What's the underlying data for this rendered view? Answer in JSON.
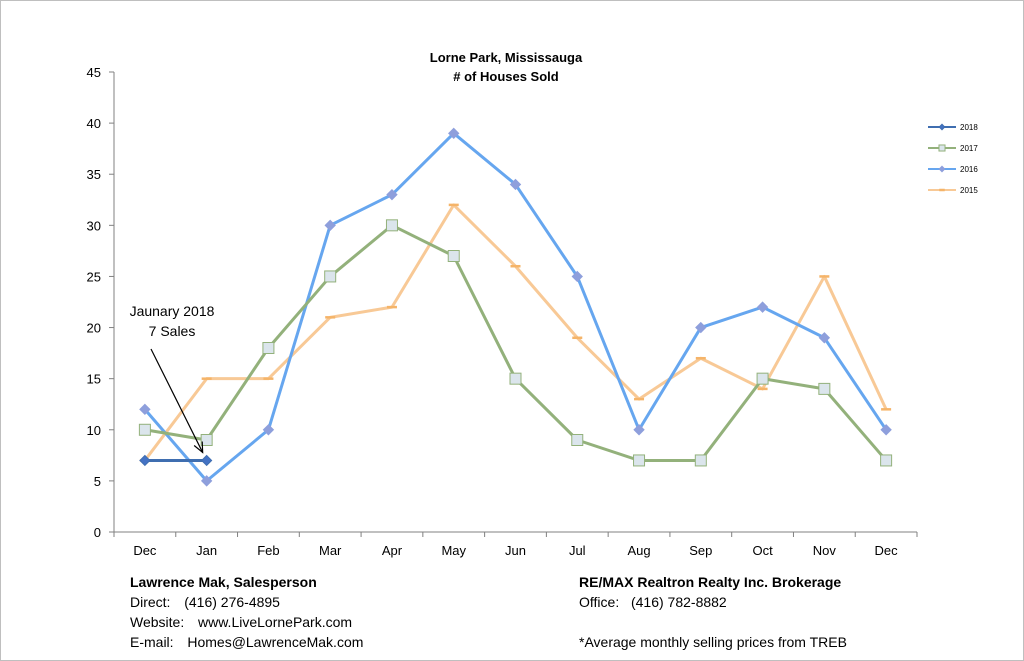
{
  "chart_data": {
    "type": "line",
    "title": "Lorne Park, Mississauga",
    "subtitle": "# of Houses Sold",
    "categories": [
      "Dec",
      "Jan",
      "Feb",
      "Mar",
      "Apr",
      "May",
      "Jun",
      "Jul",
      "Aug",
      "Sep",
      "Oct",
      "Nov",
      "Dec"
    ],
    "ylim": [
      0,
      45
    ],
    "yticks": [
      "0",
      "5",
      "10",
      "15",
      "20",
      "25",
      "30",
      "35",
      "40",
      "45"
    ],
    "grid": false,
    "legend_position": "right",
    "series": [
      {
        "name": "2018",
        "color": "#3f6eb0",
        "marker": "diamond",
        "values": [
          7,
          7,
          null,
          null,
          null,
          null,
          null,
          null,
          null,
          null,
          null,
          null,
          null
        ]
      },
      {
        "name": "2017",
        "color": "#93b17b",
        "marker": "square",
        "values": [
          10,
          9,
          18,
          25,
          30,
          27,
          15,
          9,
          7,
          7,
          15,
          14,
          7
        ]
      },
      {
        "name": "2016",
        "color": "#66a6ef",
        "marker": "diamond",
        "values": [
          12,
          5,
          10,
          30,
          33,
          39,
          34,
          25,
          10,
          20,
          22,
          19,
          10
        ]
      },
      {
        "name": "2015",
        "color": "#f8c996",
        "marker": "dash",
        "values": [
          7,
          15,
          15,
          21,
          22,
          32,
          26,
          19,
          13,
          17,
          14,
          25,
          12
        ]
      }
    ],
    "annotation": {
      "line1": "Jaunary 2018",
      "line2": "7 Sales",
      "target_category_index": 1,
      "target_value": 7
    }
  },
  "footer": {
    "left": {
      "name": "Lawrence Mak, Salesperson",
      "direct_label": "Direct:",
      "direct_value": "(416) 276-4895",
      "website_label": "Website:",
      "website_value": "www.LiveLornePark.com",
      "email_label": "E-mail:",
      "email_value": "Homes@LawrenceMak.com"
    },
    "right": {
      "name": "RE/MAX Realtron Realty Inc. Brokerage",
      "office_label": "Office:",
      "office_value": "(416) 782-8882",
      "note": "*Average monthly selling prices from TREB"
    }
  }
}
